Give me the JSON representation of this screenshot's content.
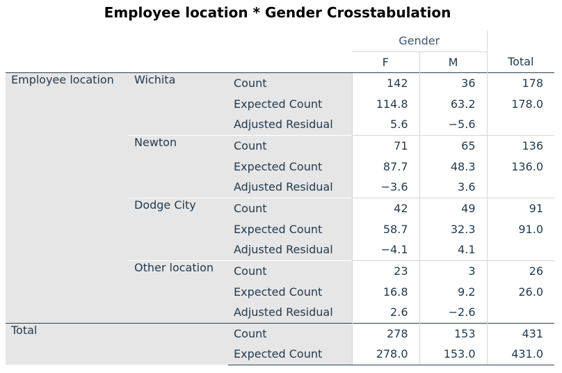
{
  "title": "Employee location * Gender Crosstabulation",
  "header": {
    "gender": "Gender",
    "f": "F",
    "m": "M",
    "total": "Total"
  },
  "row_label": "Employee location",
  "groups": [
    {
      "name": "Wichita",
      "rows": [
        {
          "stat": "Count",
          "f": "142",
          "m": "36",
          "total": "178"
        },
        {
          "stat": "Expected Count",
          "f": "114.8",
          "m": "63.2",
          "total": "178.0"
        },
        {
          "stat": "Adjusted Residual",
          "f": "5.6",
          "m": "−5.6",
          "total": ""
        }
      ]
    },
    {
      "name": "Newton",
      "rows": [
        {
          "stat": "Count",
          "f": "71",
          "m": "65",
          "total": "136"
        },
        {
          "stat": "Expected Count",
          "f": "87.7",
          "m": "48.3",
          "total": "136.0"
        },
        {
          "stat": "Adjusted Residual",
          "f": "−3.6",
          "m": "3.6",
          "total": ""
        }
      ]
    },
    {
      "name": "Dodge City",
      "rows": [
        {
          "stat": "Count",
          "f": "42",
          "m": "49",
          "total": "91"
        },
        {
          "stat": "Expected Count",
          "f": "58.7",
          "m": "32.3",
          "total": "91.0"
        },
        {
          "stat": "Adjusted Residual",
          "f": "−4.1",
          "m": "4.1",
          "total": ""
        }
      ]
    },
    {
      "name": "Other location",
      "rows": [
        {
          "stat": "Count",
          "f": "23",
          "m": "3",
          "total": "26"
        },
        {
          "stat": "Expected Count",
          "f": "16.8",
          "m": "9.2",
          "total": "26.0"
        },
        {
          "stat": "Adjusted Residual",
          "f": "2.6",
          "m": "−2.6",
          "total": ""
        }
      ]
    }
  ],
  "total": {
    "label": "Total",
    "rows": [
      {
        "stat": "Count",
        "f": "278",
        "m": "153",
        "total": "431"
      },
      {
        "stat": "Expected Count",
        "f": "278.0",
        "m": "153.0",
        "total": "431.0"
      }
    ]
  }
}
